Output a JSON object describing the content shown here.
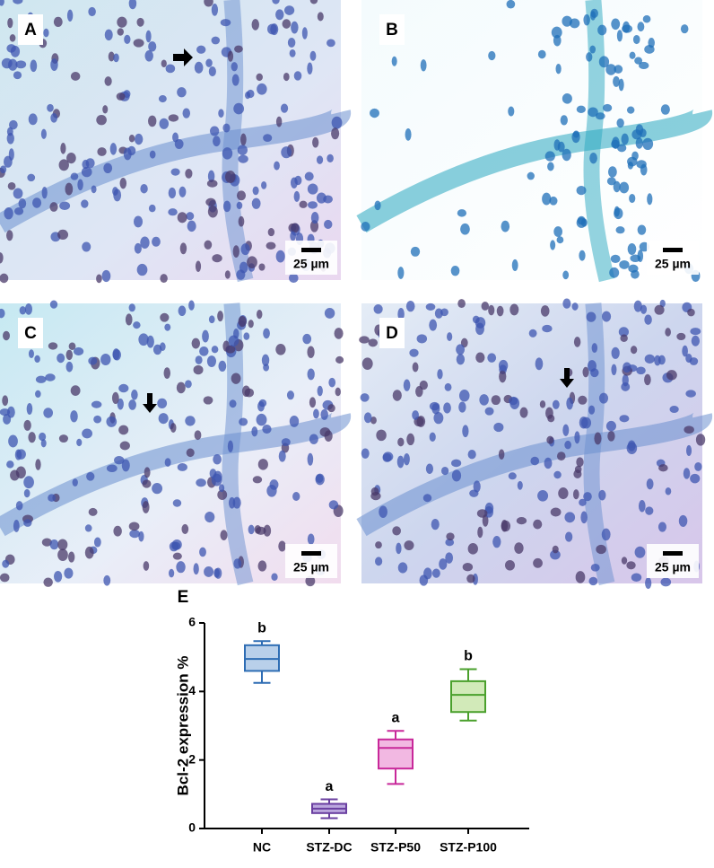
{
  "panels": [
    {
      "label": "A",
      "scale": "25 µm"
    },
    {
      "label": "B",
      "scale": "25 µm"
    },
    {
      "label": "C",
      "scale": "25 µm"
    },
    {
      "label": "D",
      "scale": "25 µm"
    }
  ],
  "chart_data": {
    "type": "box",
    "panel_label": "E",
    "y_label": "Bcl-2 expression %",
    "categories": [
      "NC",
      "STZ-DC",
      "STZ-P50",
      "STZ-P100"
    ],
    "boxes": [
      {
        "min": 4.25,
        "q1": 4.6,
        "median": 4.95,
        "q3": 5.35,
        "max": 5.47,
        "label": "b",
        "color": "#2e6db4",
        "fill": "#b9d0ea"
      },
      {
        "min": 0.3,
        "q1": 0.45,
        "median": 0.58,
        "q3": 0.72,
        "max": 0.85,
        "label": "a",
        "color": "#6a3fa0",
        "fill": "#bba7de"
      },
      {
        "min": 1.3,
        "q1": 1.75,
        "median": 2.35,
        "q3": 2.6,
        "max": 2.85,
        "label": "a",
        "color": "#c8289a",
        "fill": "#f2b8e2"
      },
      {
        "min": 3.15,
        "q1": 3.4,
        "median": 3.9,
        "q3": 4.3,
        "max": 4.65,
        "label": "b",
        "color": "#4aa02c",
        "fill": "#d2eab9"
      }
    ],
    "ylim": [
      0,
      6
    ],
    "yticks": [
      0,
      2,
      4,
      6
    ]
  }
}
